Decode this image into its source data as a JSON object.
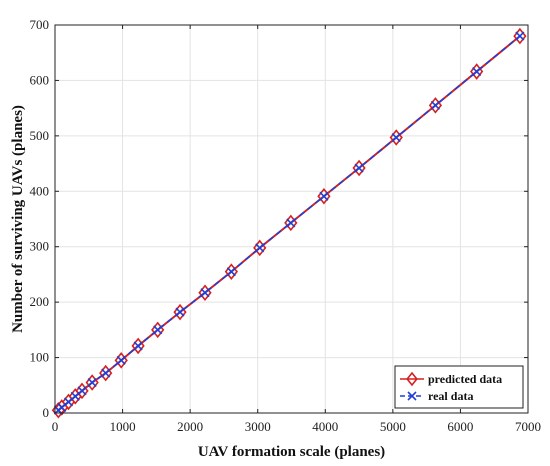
{
  "chart_data": {
    "type": "line",
    "xlabel": "UAV formation scale (planes)",
    "ylabel": "Number of surviving UAVs (planes)",
    "xlim": [
      0,
      7000
    ],
    "ylim": [
      0,
      700
    ],
    "xticks": [
      0,
      1000,
      2000,
      3000,
      4000,
      5000,
      6000,
      7000
    ],
    "yticks": [
      0,
      100,
      200,
      300,
      400,
      500,
      600,
      700
    ],
    "grid": true,
    "legend_position": "bottom-right",
    "series": [
      {
        "name": "predicted data",
        "color": "#d42020",
        "marker": "diamond",
        "x": [
          50,
          100,
          200,
          300,
          400,
          550,
          750,
          980,
          1230,
          1520,
          1850,
          2220,
          2610,
          3030,
          3490,
          3980,
          4500,
          5050,
          5630,
          6240,
          6880
        ],
        "y": [
          5,
          10,
          20,
          30,
          40,
          55,
          72,
          95,
          121,
          150,
          182,
          217,
          255,
          298,
          343,
          391,
          442,
          497,
          555,
          616,
          680
        ]
      },
      {
        "name": "real data",
        "color": "#1f3fd6",
        "marker": "x",
        "x": [
          50,
          100,
          200,
          300,
          400,
          550,
          750,
          980,
          1230,
          1520,
          1850,
          2220,
          2610,
          3030,
          3490,
          3980,
          4500,
          5050,
          5630,
          6240,
          6880
        ],
        "y": [
          5,
          10,
          20,
          30,
          40,
          55,
          72,
          95,
          121,
          150,
          182,
          217,
          255,
          298,
          343,
          391,
          442,
          497,
          555,
          616,
          680
        ]
      }
    ]
  }
}
